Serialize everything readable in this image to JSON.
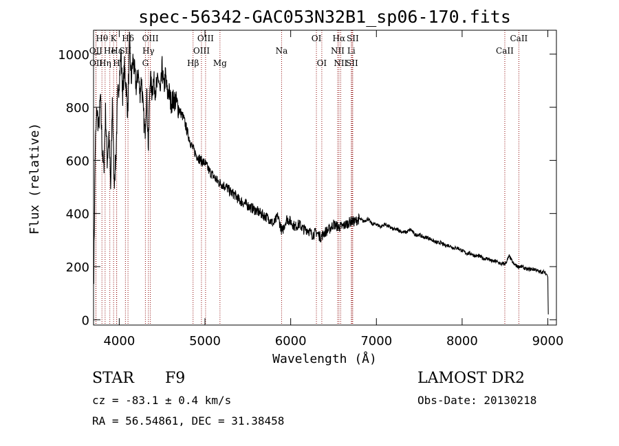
{
  "chart_data": {
    "type": "line",
    "title": "spec-56342-GAC053N32B1_sp06-170.fits",
    "xlabel": "Wavelength (Å)",
    "ylabel": "Flux (relative)",
    "xlim": [
      3700,
      9100
    ],
    "ylim": [
      -20,
      1090
    ],
    "x_ticks": [
      4000,
      5000,
      6000,
      7000,
      8000,
      9000
    ],
    "y_ticks": [
      0,
      200,
      400,
      600,
      800,
      1000
    ],
    "series": [
      {
        "x": [
          3700,
          3703,
          3720,
          3740,
          3760,
          3780,
          3800,
          3820,
          3840,
          3860,
          3880,
          3900,
          3920,
          3940,
          3960,
          3980,
          4000,
          4020,
          4040,
          4060,
          4080,
          4100,
          4120,
          4140,
          4160,
          4180,
          4200,
          4220,
          4240,
          4260,
          4280,
          4300,
          4320,
          4340,
          4360,
          4380,
          4400,
          4420,
          4440,
          4460,
          4480,
          4500,
          4520,
          4540,
          4560,
          4580,
          4600,
          4650,
          4700,
          4750,
          4800,
          4850,
          4900,
          4950,
          5000,
          5050,
          5100,
          5150,
          5200,
          5250,
          5300,
          5350,
          5400,
          5450,
          5500,
          5550,
          5600,
          5650,
          5700,
          5750,
          5800,
          5850,
          5900,
          5950,
          6000,
          6050,
          6100,
          6150,
          6200,
          6250,
          6300,
          6350,
          6400,
          6450,
          6500,
          6550,
          6600,
          6650,
          6700,
          6750,
          6800,
          6850,
          6900,
          6950,
          7000,
          7050,
          7100,
          7150,
          7200,
          7250,
          7300,
          7350,
          7400,
          7450,
          7500,
          7550,
          7600,
          7650,
          7700,
          7750,
          7800,
          7850,
          7900,
          7950,
          8000,
          8050,
          8100,
          8150,
          8200,
          8250,
          8300,
          8350,
          8400,
          8450,
          8500,
          8520,
          8550,
          8600,
          8650,
          8700,
          8750,
          8800,
          8850,
          8900,
          8950,
          8990,
          9000,
          9005
        ],
        "y": [
          340,
          180,
          650,
          790,
          720,
          840,
          650,
          560,
          780,
          600,
          700,
          490,
          830,
          520,
          600,
          830,
          900,
          1000,
          850,
          950,
          880,
          780,
          1040,
          900,
          980,
          930,
          870,
          940,
          850,
          910,
          780,
          700,
          860,
          640,
          920,
          860,
          900,
          870,
          880,
          910,
          840,
          950,
          870,
          920,
          850,
          860,
          820,
          830,
          790,
          760,
          700,
          650,
          620,
          600,
          590,
          560,
          540,
          520,
          510,
          500,
          480,
          470,
          450,
          440,
          430,
          420,
          410,
          400,
          390,
          380,
          360,
          390,
          330,
          380,
          370,
          350,
          360,
          340,
          340,
          320,
          330,
          310,
          330,
          340,
          360,
          350,
          350,
          360,
          370,
          370,
          380,
          370,
          380,
          360,
          360,
          350,
          360,
          350,
          340,
          340,
          330,
          330,
          340,
          320,
          320,
          310,
          310,
          300,
          290,
          290,
          280,
          280,
          270,
          270,
          260,
          250,
          250,
          240,
          240,
          230,
          230,
          220,
          220,
          210,
          210,
          220,
          240,
          210,
          200,
          200,
          190,
          190,
          190,
          180,
          180,
          170,
          160,
          20
        ]
      }
    ],
    "line_markers": [
      {
        "label": "Hθ",
        "x": 3798,
        "row": 0
      },
      {
        "label": "OII",
        "x": 3727,
        "row": 1
      },
      {
        "label": "OII",
        "x": 3729,
        "row": 2
      },
      {
        "label": "He",
        "x": 3890,
        "row": 1
      },
      {
        "label": "K",
        "x": 3934,
        "row": 0
      },
      {
        "label": "Hη",
        "x": 3835,
        "row": 2
      },
      {
        "label": "H",
        "x": 3969,
        "row": 2
      },
      {
        "label": "Hε",
        "x": 3970,
        "row": 1
      },
      {
        "label": "Hδ",
        "x": 4102,
        "row": 0
      },
      {
        "label": "SII",
        "x": 4072,
        "row": 1
      },
      {
        "label": "OIII",
        "x": 4363,
        "row": 0
      },
      {
        "label": "Hγ",
        "x": 4340,
        "row": 1
      },
      {
        "label": "G",
        "x": 4305,
        "row": 2
      },
      {
        "label": "Hβ",
        "x": 4861,
        "row": 2
      },
      {
        "label": "OIII",
        "x": 5007,
        "row": 0
      },
      {
        "label": "OIII",
        "x": 4959,
        "row": 1
      },
      {
        "label": "Mg",
        "x": 5175,
        "row": 2
      },
      {
        "label": "Na",
        "x": 5894,
        "row": 1
      },
      {
        "label": "OI",
        "x": 6300,
        "row": 0
      },
      {
        "label": "OI",
        "x": 6363,
        "row": 2
      },
      {
        "label": "Hα",
        "x": 6563,
        "row": 0
      },
      {
        "label": "NII",
        "x": 6548,
        "row": 1
      },
      {
        "label": "NII",
        "x": 6583,
        "row": 2
      },
      {
        "label": "SII",
        "x": 6724,
        "row": 0
      },
      {
        "label": "Li",
        "x": 6707,
        "row": 1
      },
      {
        "label": "SII",
        "x": 6716,
        "row": 2
      },
      {
        "label": "CaII",
        "x": 8662,
        "row": 0
      },
      {
        "label": "CaII",
        "x": 8498,
        "row": 1
      }
    ],
    "marker_line_color": "#8b0000"
  },
  "info": {
    "class_label": "STAR",
    "subclass": "F9",
    "survey": "LAMOST DR2",
    "cz": "cz = -83.1 ± 0.4 km/s",
    "obs_date": "Obs-Date: 20130218",
    "radec": "RA =  56.54861, DEC =  31.38458"
  }
}
